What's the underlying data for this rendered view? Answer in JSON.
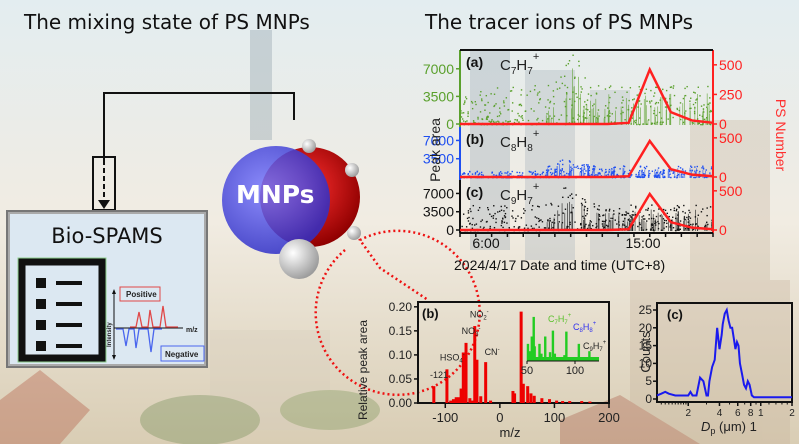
{
  "titles": {
    "left": "The mixing state of PS MNPs",
    "right": "The tracer ions of PS MNPs"
  },
  "instrument": {
    "name": "Bio-SPAMS",
    "spectrum_labels": {
      "positive": "Positive",
      "negative": "Negative",
      "y_axis": "Intensity",
      "x_axis": "m/z"
    }
  },
  "particle": {
    "label": "MNPs"
  },
  "colors": {
    "c7h7": "#5aa02c",
    "c8h8": "#1f4ff0",
    "c9h7": "#111111",
    "ps_number": "#ff2020",
    "spectrum": "#ee0000",
    "size_dist": "#1a1aee"
  },
  "chart_data": [
    {
      "type": "scatter",
      "id": "time-series",
      "title": "",
      "xlabel": "Date and time (UTC+8)",
      "ylabel_left": "Peak area",
      "ylabel_right": "PS Number",
      "x_ticks": [
        "6:00",
        "15:00"
      ],
      "x_date": "2024/4/17",
      "panels": [
        {
          "label": "(a)",
          "ion": "C7H7",
          "ion_main": "C",
          "sub1": "7",
          "mid": "H",
          "sub2": "7",
          "charge": "+",
          "y_ticks": [
            0,
            3500,
            7000
          ],
          "ylim": [
            0,
            9000
          ],
          "right_ticks": [
            0,
            250,
            500
          ],
          "right_lim": [
            0,
            600
          ]
        },
        {
          "label": "(b)",
          "ion": "C8H8",
          "ion_main": "C",
          "sub1": "8",
          "mid": "H",
          "sub2": "8",
          "charge": "+",
          "y_ticks": [
            3500,
            7000
          ],
          "ylim": [
            0,
            9000
          ],
          "right_ticks": [
            0,
            500
          ],
          "right_lim": [
            0,
            600
          ]
        },
        {
          "label": "(c)",
          "ion": "C9H7",
          "ion_main": "C",
          "sub1": "9",
          "mid": "H",
          "sub2": "7",
          "charge": "+",
          "y_ticks": [
            0,
            3500,
            7000
          ],
          "ylim": [
            0,
            9000
          ],
          "right_ticks": [
            0,
            500
          ],
          "right_lim": [
            0,
            600
          ]
        }
      ],
      "ps_number_line": {
        "x_hours": [
          6,
          8,
          10,
          12,
          14,
          16,
          18,
          20,
          22,
          24,
          26,
          28,
          30
        ],
        "values": [
          0,
          0,
          0,
          0,
          0,
          0,
          0,
          0,
          10,
          460,
          100,
          30,
          10
        ]
      }
    },
    {
      "type": "bar",
      "id": "mass-spectrum",
      "label": "(b)",
      "xlabel": "m/z",
      "ylabel": "Relative peak area",
      "xlim": [
        -150,
        200
      ],
      "ylim": [
        0,
        0.21
      ],
      "x_ticks": [
        -100,
        0,
        100,
        200
      ],
      "y_ticks": [
        "0.00",
        "0.05",
        "0.10",
        "0.15",
        "0.20"
      ],
      "peaks": [
        {
          "mz": -121,
          "value": 0.035
        },
        {
          "mz": -97,
          "value": 0.07
        },
        {
          "mz": -90,
          "value": 0.005
        },
        {
          "mz": -85,
          "value": 0.008
        },
        {
          "mz": -80,
          "value": 0.012
        },
        {
          "mz": -75,
          "value": 0.012
        },
        {
          "mz": -71,
          "value": 0.03
        },
        {
          "mz": -67,
          "value": 0.105
        },
        {
          "mz": -62,
          "value": 0.125
        },
        {
          "mz": -55,
          "value": 0.01
        },
        {
          "mz": -50,
          "value": 0.005
        },
        {
          "mz": -46,
          "value": 0.16
        },
        {
          "mz": -42,
          "value": 0.09
        },
        {
          "mz": -35,
          "value": 0.014
        },
        {
          "mz": -26,
          "value": 0.085
        },
        {
          "mz": -17,
          "value": 0.005
        },
        {
          "mz": 24,
          "value": 0.025
        },
        {
          "mz": 27,
          "value": 0.02
        },
        {
          "mz": 39,
          "value": 0.19
        },
        {
          "mz": 43,
          "value": 0.04
        },
        {
          "mz": 51,
          "value": 0.035
        },
        {
          "mz": 57,
          "value": 0.02
        },
        {
          "mz": 63,
          "value": 0.015
        },
        {
          "mz": 77,
          "value": 0.01
        },
        {
          "mz": 91,
          "value": 0.008
        },
        {
          "mz": 104,
          "value": 0.005
        },
        {
          "mz": 115,
          "value": 0.004
        },
        {
          "mz": 128,
          "value": 0.004
        },
        {
          "mz": 150,
          "value": 0.004
        },
        {
          "mz": 165,
          "value": 0.003
        }
      ],
      "annotations": [
        {
          "text": "-121",
          "mz": -121
        },
        {
          "text": "HSO4",
          "sub": "4",
          "sup": "-",
          "mz": -97
        },
        {
          "text": "NO3",
          "sub": "3",
          "sup": "-",
          "mz": -62
        },
        {
          "text": "NO2",
          "sub": "2",
          "sup": "-",
          "mz": -46
        },
        {
          "text": "CN",
          "sup": "-",
          "mz": -26
        }
      ],
      "inset": {
        "xlim": [
          50,
          125
        ],
        "x_ticks": [
          50,
          100
        ],
        "peaks": [
          {
            "mz": 51,
            "value": 0.35
          },
          {
            "mz": 53,
            "value": 0.2
          },
          {
            "mz": 55,
            "value": 0.5
          },
          {
            "mz": 57,
            "value": 0.9
          },
          {
            "mz": 58,
            "value": 0.3
          },
          {
            "mz": 63,
            "value": 0.35
          },
          {
            "mz": 65,
            "value": 0.15
          },
          {
            "mz": 69,
            "value": 0.5
          },
          {
            "mz": 74,
            "value": 0.18
          },
          {
            "mz": 77,
            "value": 0.62
          },
          {
            "mz": 79,
            "value": 0.15
          },
          {
            "mz": 89,
            "value": 0.12
          },
          {
            "mz": 91,
            "value": 0.6
          },
          {
            "mz": 104,
            "value": 0.35
          },
          {
            "mz": 115,
            "value": 0.2
          },
          {
            "mz": 118,
            "value": 0.08
          }
        ],
        "labels": [
          {
            "text": "C7H7",
            "charge": "+",
            "color": "#5ac02c"
          },
          {
            "text": "C8H8",
            "charge": "+",
            "color": "#3030ee"
          },
          {
            "text": "C9H7",
            "charge": "+",
            "color": "#222222"
          }
        ]
      }
    },
    {
      "type": "line",
      "id": "size-distribution",
      "label": "(c)",
      "xlabel": "Dp (μm)",
      "ylabel": "Counts",
      "ylim": [
        0,
        25
      ],
      "y_ticks": [
        0,
        5,
        10,
        15,
        20,
        25
      ],
      "x_tick_labels": [
        "2",
        "4",
        "6",
        "8",
        "1",
        "2"
      ],
      "x": [
        1.0,
        1.1,
        1.2,
        1.3,
        1.5,
        1.7,
        2.0,
        2.1,
        2.2,
        2.4,
        2.6,
        2.8,
        3.0,
        3.1,
        3.2,
        3.4,
        3.6,
        3.8,
        4.0,
        4.2,
        4.3,
        4.5,
        4.7,
        4.9,
        5.1,
        5.3,
        5.5,
        5.7,
        5.9,
        6.1,
        6.3,
        6.6,
        6.9,
        7.2,
        7.5,
        7.8,
        8.2,
        8.6,
        9.0,
        9.5,
        10,
        11,
        12,
        13,
        14,
        15,
        16,
        18,
        20
      ],
      "counts": [
        1,
        1.5,
        2,
        1.5,
        1,
        1,
        1,
        2,
        1,
        1,
        6,
        5,
        1,
        1,
        5,
        9,
        11,
        20,
        14,
        18,
        21,
        24,
        25,
        22,
        20,
        20,
        17,
        14,
        16,
        15,
        10,
        7,
        4,
        3,
        5,
        4,
        1,
        0.5,
        0.5,
        0.5,
        0.5,
        0.5,
        0.5,
        0.5,
        0.5,
        0.5,
        0.5,
        0.5,
        0.5
      ]
    }
  ]
}
